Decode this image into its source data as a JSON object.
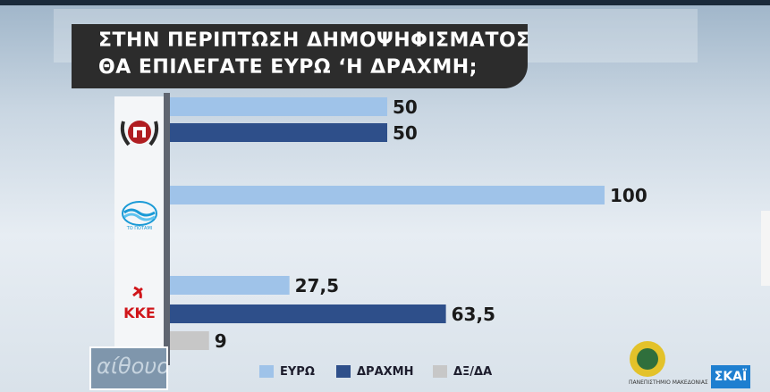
{
  "title": {
    "line1": "ΣΤΗΝ ΠΕΡΙΠΤΩΣΗ ΔΗΜΟΨΗΦΙΣΜΑΤΟΣ",
    "line2": "ΘΑ ΕΠΙΛΕΓΑΤΕ ΕΥΡΩ ‘Η ΔΡΑΧΜΗ;"
  },
  "colors": {
    "euro": "#9fc3e9",
    "drachma": "#2e4f8a",
    "dk": "#c7c7c7",
    "value_text": "#1a1a1a"
  },
  "chart_data": {
    "type": "bar",
    "orientation": "horizontal",
    "title": "ΣΤΗΝ ΠΕΡΙΠΤΩΣΗ ΔΗΜΟΨΗΦΙΣΜΑΤΟΣ ΘΑ ΕΠΙΛΕΓΑΤΕ ΕΥΡΩ ‘Η ΔΡΑΧΜΗ;",
    "xlim": [
      0,
      100
    ],
    "grid": false,
    "legend_position": "bottom",
    "groups": [
      {
        "logo": "golden-dawn-logo",
        "bars": [
          {
            "series": "ΕΥΡΩ",
            "value": 50,
            "label": "50"
          },
          {
            "series": "ΔΡΑΧΜΗ",
            "value": 50,
            "label": "50"
          }
        ]
      },
      {
        "logo": "to-potami-logo",
        "logo_text": "ΤΟ ΠΟΤΑΜΙ",
        "bars": [
          {
            "series": "ΕΥΡΩ",
            "value": 100,
            "label": "100"
          }
        ]
      },
      {
        "logo": "kke-logo",
        "logo_text": "ΚΚΕ",
        "bars": [
          {
            "series": "ΕΥΡΩ",
            "value": 27.5,
            "label": "27,5"
          },
          {
            "series": "ΔΡΑΧΜΗ",
            "value": 63.5,
            "label": "63,5"
          },
          {
            "series": "ΔΞ/ΔΑ",
            "value": 9,
            "label": "9"
          }
        ]
      }
    ],
    "series": [
      {
        "name": "ΕΥΡΩ",
        "color": "#9fc3e9"
      },
      {
        "name": "ΔΡΑΧΜΗ",
        "color": "#2e4f8a"
      },
      {
        "name": "ΔΞ/ΔΑ",
        "color": "#c7c7c7"
      }
    ]
  },
  "legend": {
    "euro": "ΕΥΡΩ",
    "drachma": "ΔΡΑΧΜΗ",
    "dk": "ΔΞ/ΔΑ"
  },
  "watermark": {
    "text": "αίθουσα"
  },
  "university": {
    "text": "ΠΑΝΕΠΙΣΤΗΜΙΟ ΜΑΚΕΔΟΝΙΑΣ"
  },
  "channel": {
    "name": "ΣΚΑΪ"
  }
}
